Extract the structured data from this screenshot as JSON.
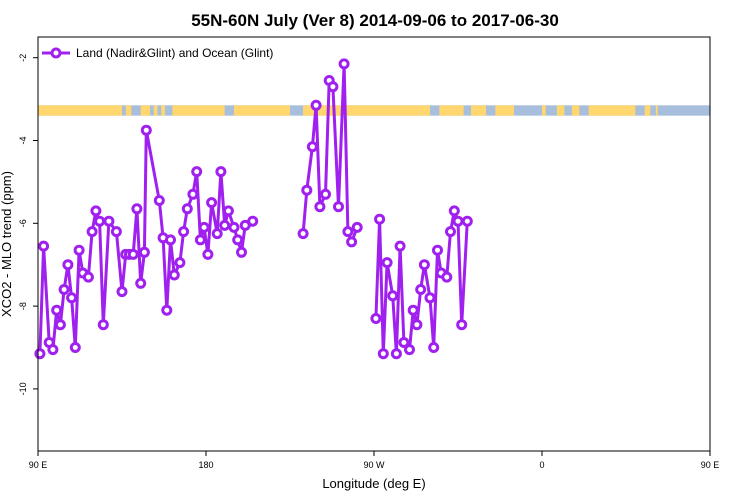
{
  "chart_data": {
    "type": "line",
    "title": "55N-60N July (Ver 8)   2014-09-06 to 2017-06-30",
    "xlabel": "Longitude (deg E)",
    "ylabel": "XCO2 - MLO trend (ppm)",
    "xlim": [
      90,
      450
    ],
    "ylim": [
      -11.5,
      -1.5
    ],
    "x_ticks": [
      {
        "value": 90,
        "label": "90 E"
      },
      {
        "value": 180,
        "label": "180"
      },
      {
        "value": 270,
        "label": "90 W"
      },
      {
        "value": 360,
        "label": "0"
      },
      {
        "value": 450,
        "label": "90 E"
      },
      {
        "value": 540,
        "label": "180"
      }
    ],
    "y_ticks": [
      {
        "value": -2,
        "label": "-2"
      },
      {
        "value": -4,
        "label": "-4"
      },
      {
        "value": -6,
        "label": "-6"
      },
      {
        "value": -8,
        "label": "-8"
      },
      {
        "value": -10,
        "label": "-10"
      }
    ],
    "legend": {
      "position": "top-left"
    },
    "land_ocean_band": {
      "y_range": [
        -3.4,
        -3.15
      ],
      "ocean_color": "#a7bedd",
      "land_color": "#ffd76e",
      "land_segments": [
        [
          90,
          135
        ],
        [
          137,
          140
        ],
        [
          145,
          150
        ],
        [
          152,
          154
        ],
        [
          156,
          158
        ],
        [
          162,
          190
        ],
        [
          195,
          225
        ],
        [
          232,
          300
        ],
        [
          305,
          318
        ],
        [
          322,
          330
        ],
        [
          335,
          345
        ],
        [
          360,
          362
        ],
        [
          368,
          372
        ],
        [
          376,
          380
        ],
        [
          385,
          410
        ],
        [
          415,
          418
        ],
        [
          421,
          422
        ],
        [
          478,
          480
        ]
      ]
    },
    "series": [
      {
        "name": "Land (Nadir&Glint) and Ocean (Glint)",
        "color": "#a020f0",
        "points": [
          [
            91,
            -9.15
          ],
          [
            93,
            -6.55
          ],
          [
            96,
            -8.88
          ],
          [
            98,
            -9.05
          ],
          [
            100,
            -8.1
          ],
          [
            102,
            -8.45
          ],
          [
            104,
            -7.6
          ],
          [
            106,
            -7.0
          ],
          [
            108,
            -7.8
          ],
          [
            110,
            -9.0
          ],
          [
            112,
            -6.65
          ],
          [
            114,
            -7.2
          ],
          [
            117,
            -7.3
          ],
          [
            119,
            -6.2
          ],
          [
            121,
            -5.7
          ],
          [
            123,
            -5.95
          ],
          [
            125,
            -8.45
          ],
          [
            128,
            -5.95
          ],
          [
            132,
            -6.2
          ],
          [
            135,
            -7.65
          ],
          [
            137,
            -6.75
          ],
          [
            139,
            -6.75
          ],
          [
            141,
            -6.75
          ],
          [
            143,
            -5.65
          ],
          [
            145,
            -7.45
          ],
          [
            147,
            -6.7
          ],
          [
            148,
            -3.75
          ],
          [
            155,
            -5.45
          ],
          [
            157,
            -6.35
          ],
          [
            159,
            -8.1
          ],
          [
            161,
            -6.4
          ],
          [
            163,
            -7.25
          ],
          [
            166,
            -6.95
          ],
          [
            168,
            -6.2
          ],
          [
            170,
            -5.65
          ],
          [
            173,
            -5.3
          ],
          [
            175,
            -4.75
          ],
          [
            177,
            -6.4
          ],
          [
            179,
            -6.1
          ],
          [
            181,
            -6.75
          ],
          [
            183,
            -5.5
          ],
          [
            186,
            -6.25
          ],
          [
            188,
            -4.75
          ],
          [
            190,
            -6.05
          ],
          [
            192,
            -5.7
          ],
          [
            195,
            -6.1
          ],
          [
            197,
            -6.4
          ],
          [
            199,
            -6.7
          ],
          [
            201,
            -6.05
          ],
          [
            205,
            -5.95
          ],
          [
            232,
            -6.25
          ],
          [
            234,
            -5.2
          ],
          [
            237,
            -4.15
          ],
          [
            239,
            -3.15
          ],
          [
            241,
            -5.6
          ],
          [
            244,
            -5.3
          ],
          [
            246,
            -2.55
          ],
          [
            248,
            -2.7
          ],
          [
            251,
            -5.6
          ],
          [
            254,
            -2.15
          ],
          [
            256,
            -6.2
          ],
          [
            258,
            -6.45
          ],
          [
            261,
            -6.1
          ]
        ],
        "segments_break_after": [
          205,
          261
        ]
      },
      {
        "name": "",
        "color": "#a020f0",
        "points": [
          [
            271,
            -8.3
          ],
          [
            273,
            -5.9
          ],
          [
            275,
            -9.15
          ],
          [
            277,
            -6.95
          ],
          [
            280,
            -7.75
          ],
          [
            282,
            -9.15
          ],
          [
            284,
            -6.55
          ],
          [
            286,
            -8.88
          ],
          [
            289,
            -9.05
          ],
          [
            291,
            -8.1
          ],
          [
            293,
            -8.45
          ],
          [
            295,
            -7.6
          ],
          [
            297,
            -7.0
          ],
          [
            300,
            -7.8
          ],
          [
            302,
            -9.0
          ],
          [
            304,
            -6.65
          ],
          [
            306,
            -7.2
          ],
          [
            309,
            -7.3
          ],
          [
            311,
            -6.2
          ],
          [
            313,
            -5.7
          ],
          [
            315,
            -5.95
          ],
          [
            317,
            -8.45
          ],
          [
            320,
            -5.95
          ]
        ]
      }
    ]
  }
}
